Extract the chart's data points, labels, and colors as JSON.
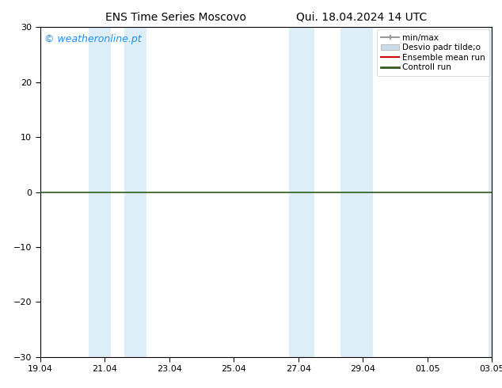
{
  "title_left": "ENS Time Series Moscovo",
  "title_right": "Qui. 18.04.2024 14 UTC",
  "ylim": [
    -30,
    30
  ],
  "yticks": [
    -30,
    -20,
    -10,
    0,
    10,
    20,
    30
  ],
  "background_color": "#ffffff",
  "plot_bg_color": "#ffffff",
  "watermark": "© weatheronline.pt",
  "watermark_color": "#1e90ff",
  "zero_line_color": "#2d5a1b",
  "shade_color": "#ddeef8",
  "shaded_day_ranges": [
    [
      1.5,
      2.2
    ],
    [
      2.6,
      3.3
    ],
    [
      7.7,
      8.5
    ],
    [
      9.3,
      10.3
    ],
    [
      13.9,
      14.0
    ]
  ],
  "xtick_labels": [
    "19.04",
    "21.04",
    "23.04",
    "25.04",
    "27.04",
    "29.04",
    "01.05",
    "03.05"
  ],
  "xtick_positions": [
    0,
    2,
    4,
    6,
    8,
    10,
    12,
    14
  ],
  "x_start": 0,
  "x_end": 14,
  "legend_entries": [
    {
      "label": "min/max",
      "type": "hbar",
      "color": "#999999"
    },
    {
      "label": "Desvio padr tilde;o",
      "type": "patch",
      "color": "#c8dcec"
    },
    {
      "label": "Ensemble mean run",
      "type": "line",
      "color": "#cc0000"
    },
    {
      "label": "Controll run",
      "type": "line",
      "color": "#2d5a1b"
    }
  ],
  "tick_fontsize": 8,
  "title_fontsize": 10,
  "watermark_fontsize": 9,
  "legend_fontsize": 7.5
}
